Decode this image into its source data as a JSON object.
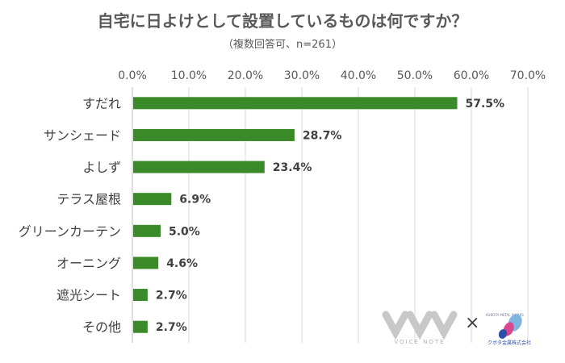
{
  "chart_data": {
    "type": "bar",
    "orientation": "horizontal",
    "title": "自宅に日よけとして設置しているものは何ですか？",
    "subtitle": "（複数回答可、n=261）",
    "categories": [
      "すだれ",
      "サンシェード",
      "よしず",
      "テラス屋根",
      "グリーンカーテン",
      "オーニング",
      "遮光シート",
      "その他"
    ],
    "values": [
      57.5,
      28.7,
      23.4,
      6.9,
      5.0,
      4.6,
      2.7,
      2.7
    ],
    "value_labels": [
      "57.5%",
      "28.7%",
      "23.4%",
      "6.9%",
      "5.0%",
      "4.6%",
      "2.7%",
      "2.7%"
    ],
    "tick_labels": [
      "0.0%",
      "10.0%",
      "20.0%",
      "30.0%",
      "40.0%",
      "50.0%",
      "60.0%",
      "70.0%"
    ],
    "xlim": [
      0,
      70
    ],
    "axis_position": "top",
    "grid": true,
    "bar_color": "#3a8a2a"
  },
  "logos": {
    "voice_note": "VOICE NOTE",
    "separator": "×",
    "metal_works_small": "KUBOTA METAL WORKS",
    "metal_works": "クボタ金属株式会社"
  }
}
